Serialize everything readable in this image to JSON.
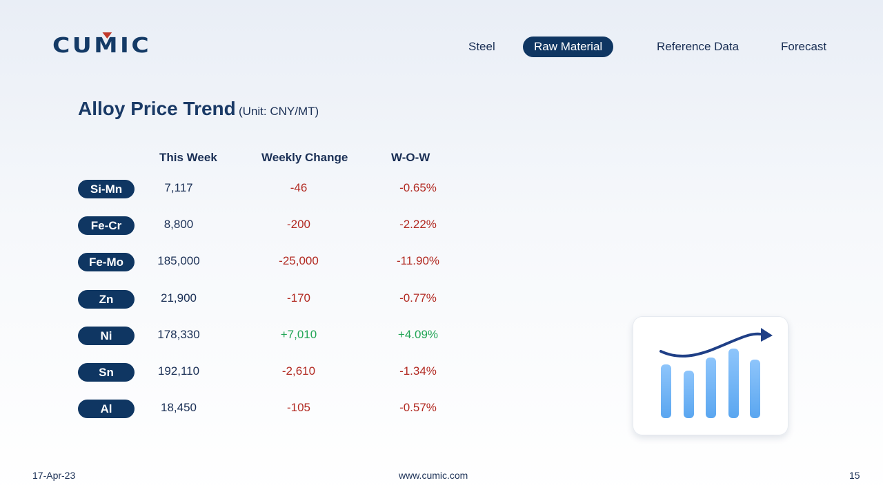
{
  "logo": {
    "text_pre": "CU",
    "text_m": "M",
    "text_post": "IC"
  },
  "nav": {
    "items": [
      {
        "label": "Steel",
        "active": false
      },
      {
        "label": "Raw Material",
        "active": true
      },
      {
        "label": "Reference Data",
        "active": false
      },
      {
        "label": "Forecast",
        "active": false
      }
    ]
  },
  "page": {
    "title": "Alloy Price Trend",
    "unit": "(Unit: CNY/MT)"
  },
  "table": {
    "headers": {
      "this_week": "This Week",
      "weekly_change": "Weekly Change",
      "wow": "W-O-W"
    },
    "rows": [
      {
        "name": "Si-Mn",
        "this_week": "7,117",
        "weekly_change": "-46",
        "wow": "-0.65%",
        "trend": "down"
      },
      {
        "name": "Fe-Cr",
        "this_week": "8,800",
        "weekly_change": "-200",
        "wow": "-2.22%",
        "trend": "down"
      },
      {
        "name": "Fe-Mo",
        "this_week": "185,000",
        "weekly_change": "-25,000",
        "wow": "-11.90%",
        "trend": "down"
      },
      {
        "name": "Zn",
        "this_week": "21,900",
        "weekly_change": "-170",
        "wow": "-0.77%",
        "trend": "down"
      },
      {
        "name": "Ni",
        "this_week": "178,330",
        "weekly_change": "+7,010",
        "wow": "+4.09%",
        "trend": "up"
      },
      {
        "name": "Sn",
        "this_week": "192,110",
        "weekly_change": "-2,610",
        "wow": "-1.34%",
        "trend": "down"
      },
      {
        "name": "Al",
        "this_week": "18,450",
        "weekly_change": "-105",
        "wow": "-0.57%",
        "trend": "down"
      }
    ]
  },
  "illustration": {
    "icon": "trend-chart-icon"
  },
  "footer": {
    "date": "17-Apr-23",
    "website": "www.cumic.com",
    "page_number": "15"
  },
  "colors": {
    "brand": "#0f3662",
    "negative": "#b22a22",
    "positive": "#22a556",
    "logo_accent": "#c0392b"
  }
}
